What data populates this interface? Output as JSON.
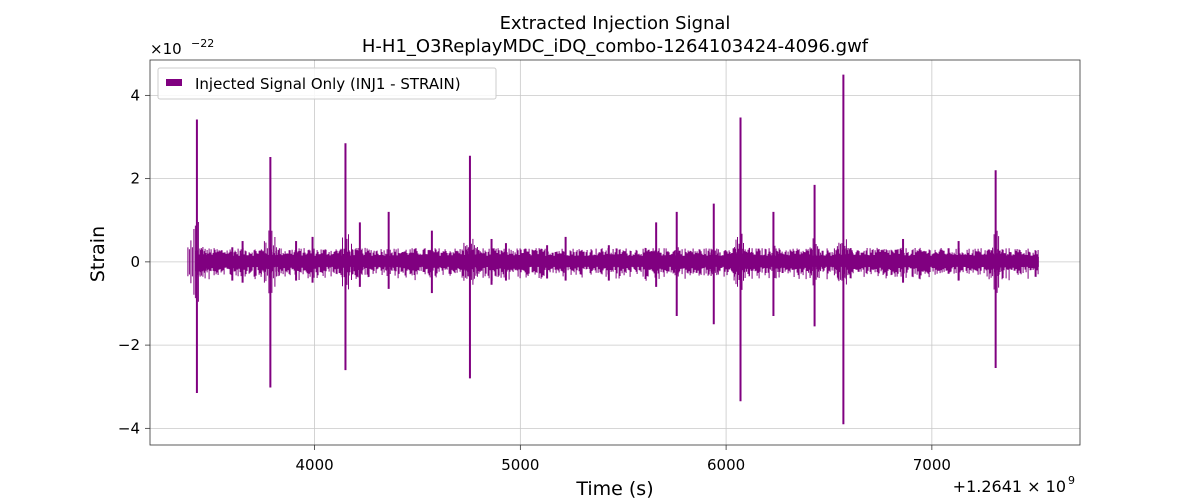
{
  "chart_data": {
    "type": "line",
    "title": "Extracted Injection Signal",
    "subtitle": "H-H1_O3ReplayMDC_iDQ_combo-1264103424-4096.gwf",
    "xlabel": "Time (s)",
    "ylabel": "Strain",
    "x_offset_label": "+1.2641 × 10",
    "x_offset_exp": "9",
    "y_scale_label": "×10",
    "y_scale_exp": "−22",
    "xlim": [
      3200,
      7720
    ],
    "ylim": [
      -4.4,
      4.85
    ],
    "x_ticks": [
      4000,
      5000,
      6000,
      7000
    ],
    "x_tick_labels": [
      "4000",
      "5000",
      "6000",
      "7000"
    ],
    "y_ticks": [
      -4,
      -2,
      0,
      2,
      4
    ],
    "y_tick_labels": [
      "−4",
      "−2",
      "0",
      "2",
      "4"
    ],
    "grid": true,
    "legend_position": "top-left",
    "series": [
      {
        "name": "Injected Signal Only (INJ1 - STRAIN)",
        "color": "#800080",
        "x_start": 3424,
        "x_end": 7520,
        "background_envelope": 0.12,
        "peaks": [
          {
            "x": 3428,
            "y_max": 3.42,
            "y_min": -3.15
          },
          {
            "x": 3785,
            "y_max": 2.52,
            "y_min": -3.02
          },
          {
            "x": 4150,
            "y_max": 2.85,
            "y_min": -2.6
          },
          {
            "x": 4755,
            "y_max": 2.55,
            "y_min": -2.8
          },
          {
            "x": 6070,
            "y_max": 3.47,
            "y_min": -3.35
          },
          {
            "x": 6570,
            "y_max": 4.5,
            "y_min": -3.9
          },
          {
            "x": 7310,
            "y_max": 2.2,
            "y_min": -2.55
          },
          {
            "x": 3600,
            "y_max": 0.35,
            "y_min": -0.45
          },
          {
            "x": 3650,
            "y_max": 0.5,
            "y_min": -0.5
          },
          {
            "x": 3910,
            "y_max": 0.5,
            "y_min": -0.45
          },
          {
            "x": 3990,
            "y_max": 0.6,
            "y_min": -0.5
          },
          {
            "x": 4220,
            "y_max": 0.95,
            "y_min": -0.6
          },
          {
            "x": 4360,
            "y_max": 1.2,
            "y_min": -0.65
          },
          {
            "x": 4570,
            "y_max": 0.75,
            "y_min": -0.75
          },
          {
            "x": 4860,
            "y_max": 0.55,
            "y_min": -0.55
          },
          {
            "x": 4930,
            "y_max": 0.45,
            "y_min": -0.45
          },
          {
            "x": 5130,
            "y_max": 0.4,
            "y_min": -0.4
          },
          {
            "x": 5220,
            "y_max": 0.6,
            "y_min": -0.45
          },
          {
            "x": 5430,
            "y_max": 0.4,
            "y_min": -0.45
          },
          {
            "x": 5660,
            "y_max": 0.95,
            "y_min": -0.6
          },
          {
            "x": 5760,
            "y_max": 1.2,
            "y_min": -1.3
          },
          {
            "x": 5940,
            "y_max": 1.4,
            "y_min": -1.5
          },
          {
            "x": 6230,
            "y_max": 1.2,
            "y_min": -1.3
          },
          {
            "x": 6430,
            "y_max": 1.85,
            "y_min": -1.55
          },
          {
            "x": 6860,
            "y_max": 0.55,
            "y_min": -0.5
          },
          {
            "x": 7130,
            "y_max": 0.5,
            "y_min": -0.45
          }
        ]
      }
    ]
  }
}
